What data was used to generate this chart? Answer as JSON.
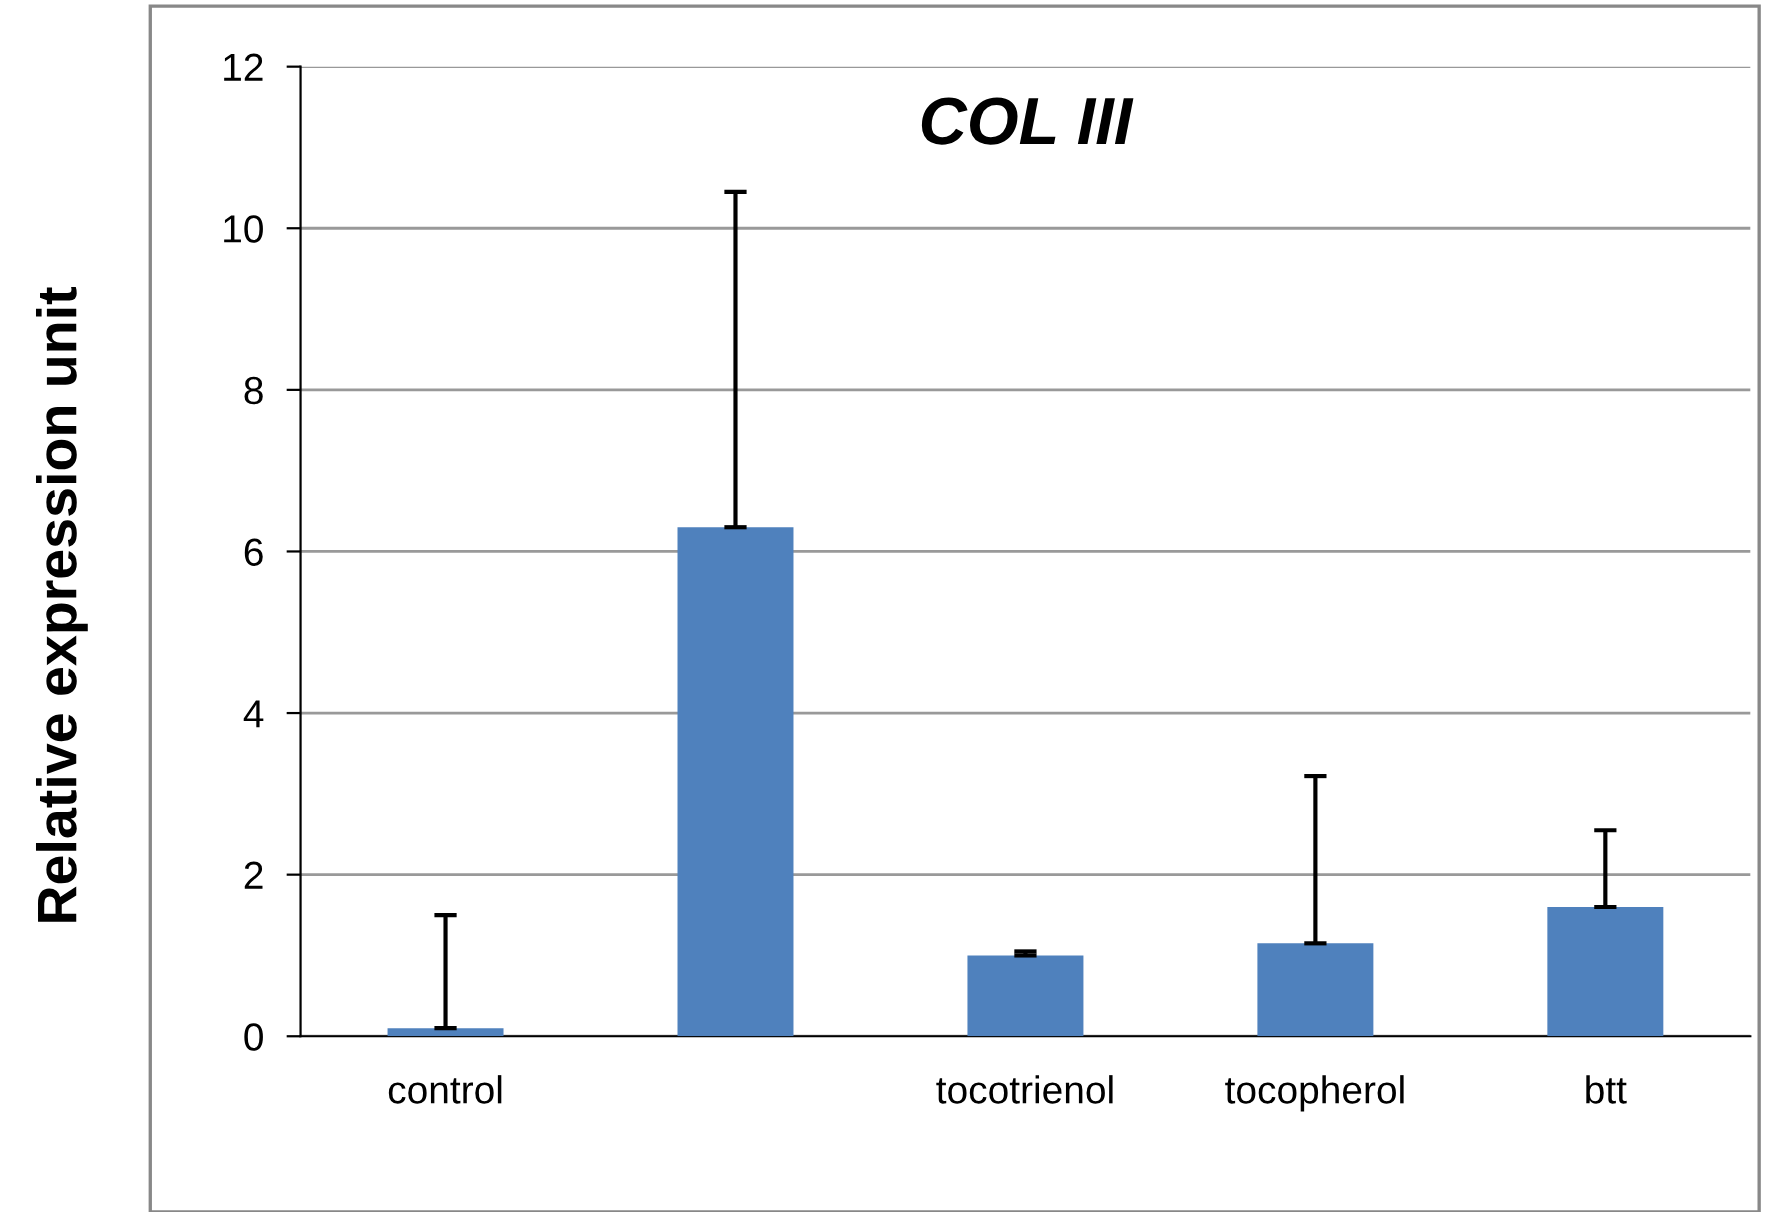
{
  "chart_data": {
    "type": "bar",
    "title": "COL III",
    "ylabel": "Relative expression unit",
    "categories": [
      "control",
      null,
      "tocotrienol",
      "tocopherol",
      "btt"
    ],
    "values": [
      0.1,
      6.3,
      1.0,
      1.15,
      1.6
    ],
    "errors": [
      [
        0.1,
        1.5
      ],
      [
        6.3,
        10.45
      ],
      [
        1.0,
        1.05
      ],
      [
        1.15,
        3.22
      ],
      [
        1.6,
        2.55
      ]
    ],
    "color": "#4f81bd",
    "ylim": [
      0,
      12
    ],
    "yticks": [
      0,
      2,
      4,
      6,
      8,
      10,
      12
    ],
    "grid": "y",
    "legend": false
  }
}
